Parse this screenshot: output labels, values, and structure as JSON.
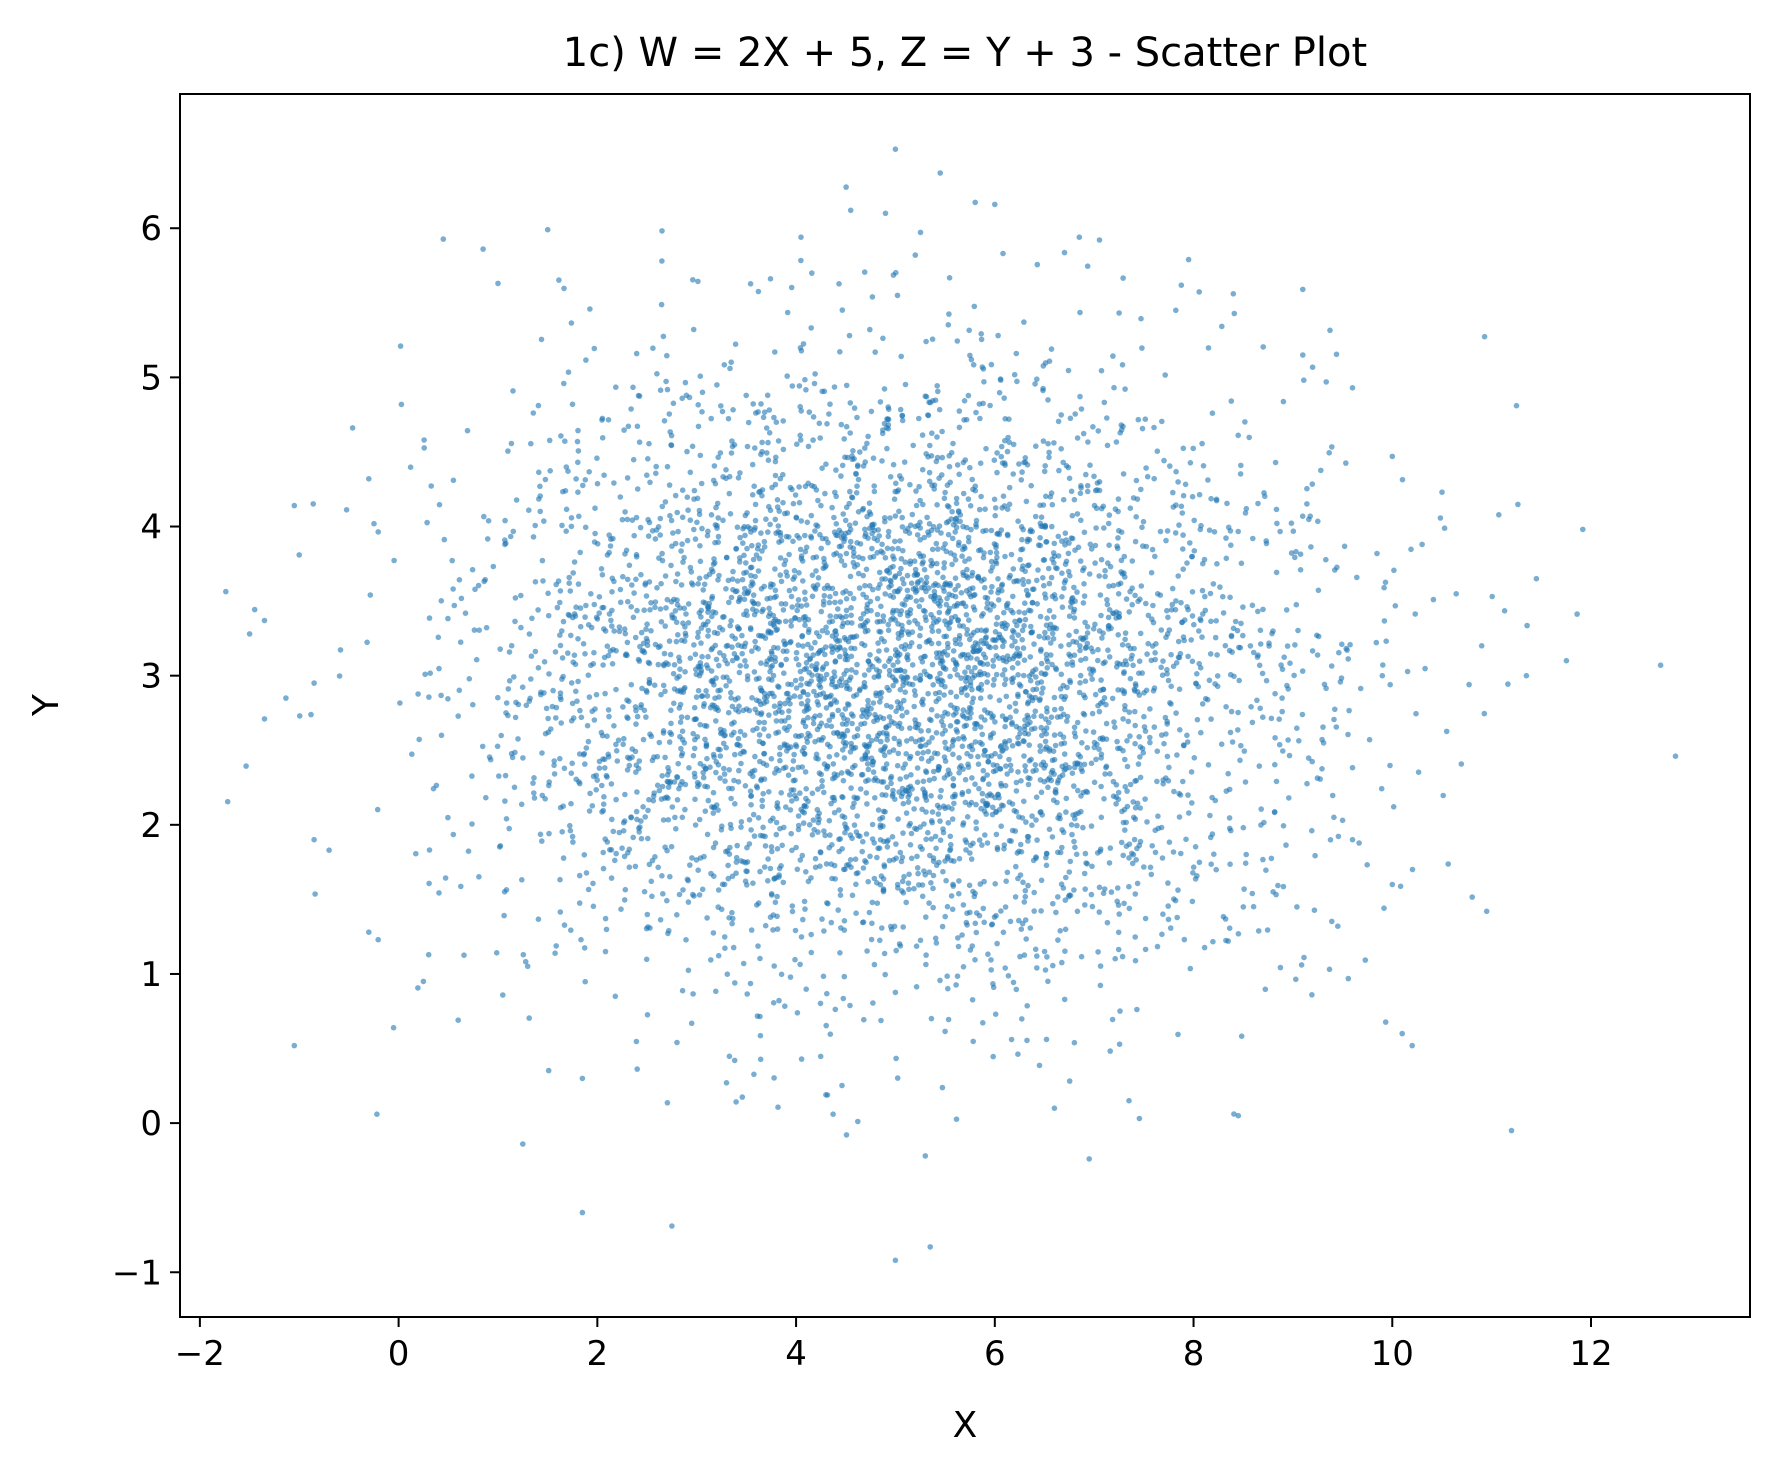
{
  "chart_data": {
    "type": "scatter",
    "title": "1c) W = 2X + 5, Z = Y + 3 - Scatter Plot",
    "xlabel": "X",
    "ylabel": "Y",
    "xlim": [
      -2.2,
      13.6
    ],
    "ylim": [
      -1.3,
      6.9
    ],
    "xticks": [
      -2,
      0,
      2,
      4,
      6,
      8,
      10,
      12
    ],
    "xtick_labels": [
      "−2",
      "0",
      "2",
      "4",
      "6",
      "8",
      "10",
      "12"
    ],
    "yticks": [
      -1,
      0,
      1,
      2,
      3,
      4,
      5,
      6
    ],
    "ytick_labels": [
      "−1",
      "0",
      "1",
      "2",
      "3",
      "4",
      "5",
      "6"
    ],
    "grid": false,
    "legend": "none",
    "marker_color": "#1f77b4",
    "marker_alpha": 0.6,
    "distribution": {
      "kind": "bivariate normal",
      "x_mean": 5,
      "x_std": 2,
      "y_mean": 3,
      "y_std": 1,
      "n_points": 5000
    },
    "series": [
      {
        "points": [
          [
            5.0,
            6.53
          ],
          [
            5.45,
            6.37
          ],
          [
            6.0,
            6.16
          ],
          [
            4.55,
            6.12
          ],
          [
            4.9,
            6.1
          ],
          [
            1.5,
            5.99
          ],
          [
            4.05,
            5.94
          ],
          [
            6.85,
            5.94
          ],
          [
            0.85,
            5.86
          ],
          [
            5.2,
            5.82
          ],
          [
            7.95,
            5.79
          ],
          [
            2.65,
            5.78
          ],
          [
            1.0,
            5.63
          ],
          [
            9.1,
            5.59
          ],
          [
            0.02,
            5.21
          ],
          [
            -1.5,
            3.28
          ],
          [
            -1.35,
            3.37
          ],
          [
            -1.05,
            4.14
          ],
          [
            -1.0,
            3.81
          ],
          [
            -0.3,
            4.32
          ],
          [
            -1.35,
            2.71
          ],
          [
            -0.85,
            2.95
          ],
          [
            -0.85,
            1.9
          ],
          [
            -0.7,
            1.83
          ],
          [
            -1.05,
            0.52
          ],
          [
            -0.3,
            1.28
          ],
          [
            -0.05,
            0.64
          ],
          [
            0.25,
            0.95
          ],
          [
            0.6,
            0.69
          ],
          [
            1.25,
            -0.14
          ],
          [
            1.85,
            -0.6
          ],
          [
            2.75,
            -0.69
          ],
          [
            5.0,
            -0.92
          ],
          [
            5.35,
            -0.83
          ],
          [
            5.3,
            -0.22
          ],
          [
            6.95,
            -0.24
          ],
          [
            11.2,
            -0.05
          ],
          [
            8.45,
            0.05
          ],
          [
            12.85,
            2.46
          ],
          [
            12.7,
            3.07
          ],
          [
            11.45,
            3.65
          ],
          [
            11.25,
            4.81
          ],
          [
            10.5,
            4.23
          ],
          [
            11.35,
            3.0
          ],
          [
            10.95,
            1.42
          ],
          [
            10.1,
            0.6
          ],
          [
            10.2,
            0.52
          ],
          [
            7.35,
            0.15
          ],
          [
            6.6,
            0.1
          ],
          [
            4.3,
            0.19
          ],
          [
            3.3,
            0.27
          ],
          [
            1.85,
            0.3
          ],
          [
            9.6,
            4.93
          ],
          [
            10.0,
            4.47
          ],
          [
            9.9,
            3.0
          ],
          [
            10.0,
            1.6
          ],
          [
            9.6,
            1.9
          ],
          [
            10.9,
            3.2
          ],
          [
            10.3,
            3.88
          ],
          [
            9.1,
            5.15
          ]
        ]
      }
    ]
  }
}
